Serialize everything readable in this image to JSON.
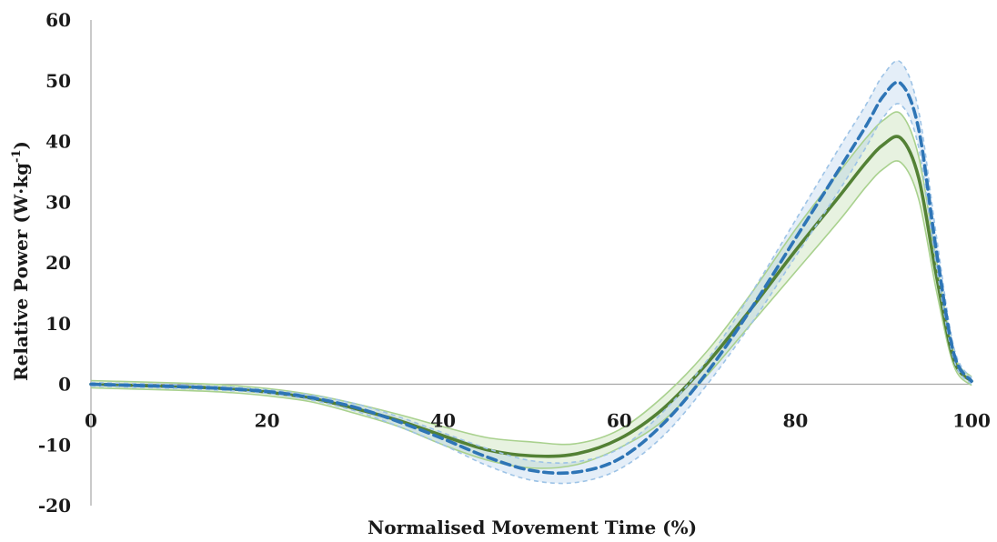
{
  "chart_data": {
    "type": "line",
    "title": "",
    "xlabel": "Normalised Movement Time (%)",
    "ylabel_main": "Relative Power (W·kg",
    "ylabel_sup": "-1",
    "ylabel_close": ")",
    "xlim": [
      0,
      100
    ],
    "ylim": [
      -20,
      60
    ],
    "x_ticks": [
      "0",
      "20",
      "40",
      "60",
      "80",
      "100"
    ],
    "y_ticks": [
      "60",
      "50",
      "40",
      "30",
      "20",
      "10",
      "0",
      "-10",
      "-20"
    ],
    "legend": "none",
    "grid": false,
    "x": [
      0,
      5,
      10,
      15,
      20,
      25,
      30,
      35,
      40,
      45,
      50,
      55,
      60,
      65,
      70,
      75,
      80,
      85,
      88,
      90,
      92,
      94,
      96,
      98,
      100
    ],
    "series": [
      {
        "style": "solid",
        "color": "#538135",
        "band_color": "#a9d18e",
        "mean": [
          0,
          -0.2,
          -0.4,
          -0.7,
          -1.3,
          -2.3,
          -4.0,
          -6.0,
          -8.5,
          -10.8,
          -11.8,
          -11.5,
          -9.0,
          -4.0,
          3.5,
          12.5,
          22.0,
          31.0,
          36.5,
          39.5,
          40.5,
          34.0,
          18.0,
          4.0,
          0.5
        ],
        "upper": [
          0.6,
          0.4,
          0.2,
          -0.1,
          -0.7,
          -1.7,
          -3.2,
          -5.0,
          -7.0,
          -8.8,
          -9.5,
          -9.8,
          -7.5,
          -2.0,
          5.5,
          15.0,
          25.5,
          35.0,
          40.5,
          43.5,
          44.5,
          37.5,
          20.5,
          5.0,
          1.2
        ],
        "lower": [
          -0.6,
          -0.8,
          -1.0,
          -1.3,
          -1.9,
          -2.9,
          -4.8,
          -7.0,
          -10.0,
          -12.5,
          -13.8,
          -13.3,
          -10.5,
          -6.0,
          1.5,
          10.0,
          18.5,
          27.0,
          32.5,
          35.5,
          36.5,
          30.5,
          15.5,
          3.0,
          -0.2
        ]
      },
      {
        "style": "dashed",
        "color": "#2e75b6",
        "band_color": "#9dc3e6",
        "mean": [
          0,
          -0.2,
          -0.4,
          -0.7,
          -1.2,
          -2.2,
          -3.8,
          -6.2,
          -9.0,
          -12.0,
          -14.2,
          -14.5,
          -12.3,
          -6.5,
          2.0,
          12.5,
          24.0,
          35.5,
          42.5,
          47.5,
          49.5,
          42.0,
          22.0,
          5.0,
          0.5
        ],
        "upper": [
          0.3,
          0.1,
          -0.1,
          -0.4,
          -0.9,
          -1.8,
          -3.2,
          -5.4,
          -8.0,
          -10.6,
          -12.6,
          -12.8,
          -10.6,
          -4.5,
          4.0,
          15.0,
          27.0,
          39.0,
          46.0,
          51.0,
          53.0,
          45.0,
          24.5,
          6.0,
          1.0
        ],
        "lower": [
          -0.3,
          -0.5,
          -0.7,
          -1.0,
          -1.5,
          -2.6,
          -4.4,
          -7.0,
          -10.0,
          -13.4,
          -15.8,
          -16.2,
          -14.0,
          -8.5,
          0.0,
          10.0,
          21.0,
          32.0,
          39.0,
          44.0,
          46.0,
          39.0,
          19.5,
          4.0,
          0.0
        ]
      }
    ]
  }
}
